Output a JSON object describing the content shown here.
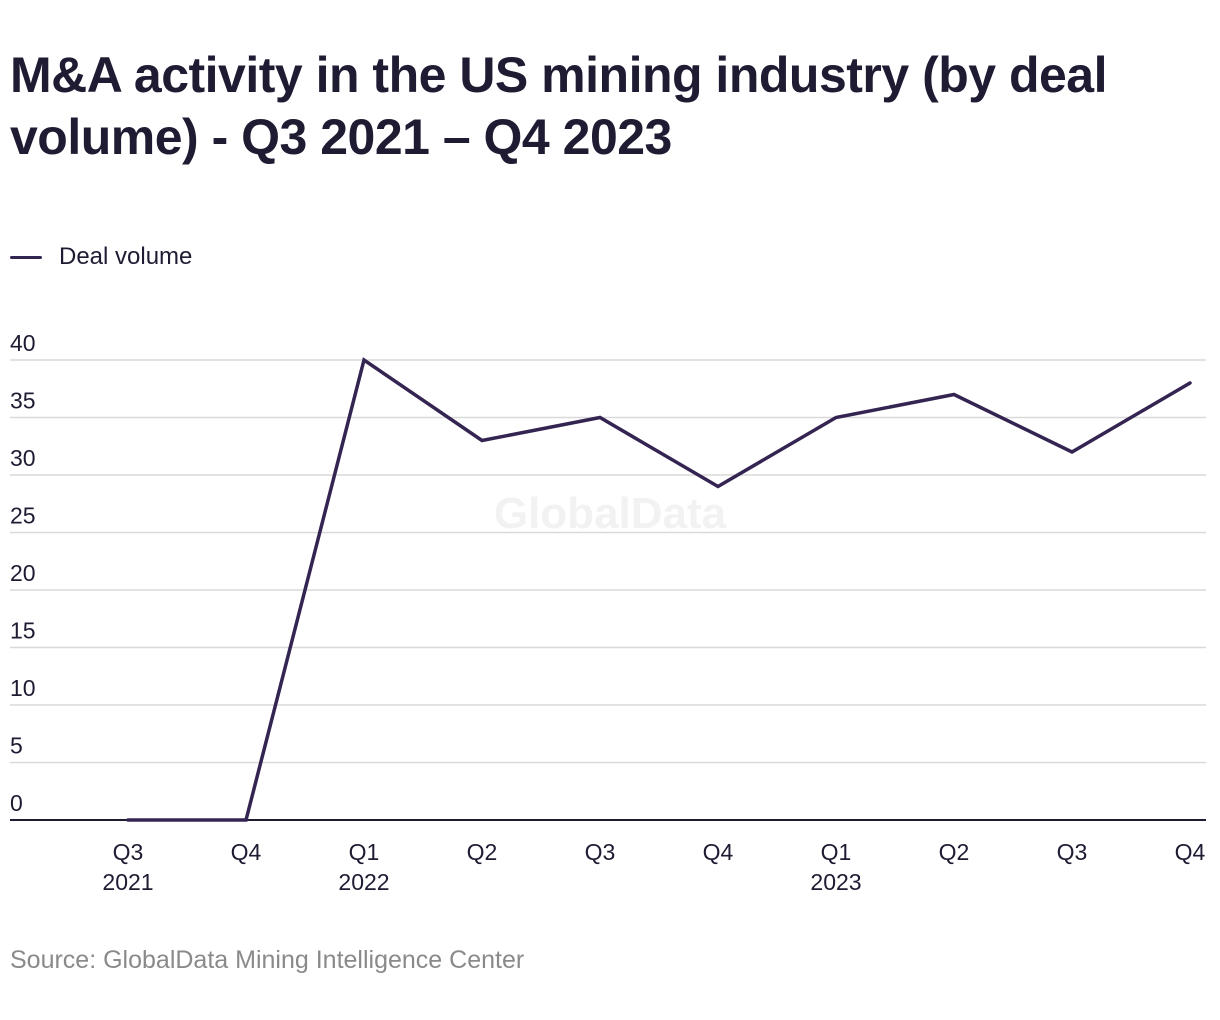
{
  "title": "M&A activity in the US mining industry (by deal volume) - Q3 2021 – Q4 2023",
  "legend": {
    "label": "Deal volume"
  },
  "watermark": "GlobalData",
  "source": "Source: GlobalData Mining Intelligence Center",
  "colors": {
    "line": "#342452",
    "grid": "#d9d9d9",
    "axis": "#1f1b33",
    "text": "#1f1b33",
    "watermark": "#f2f2f2"
  },
  "chart_data": {
    "type": "line",
    "categories": [
      "Q3",
      "Q4",
      "Q1",
      "Q2",
      "Q3",
      "Q4",
      "Q1",
      "Q2",
      "Q3",
      "Q4"
    ],
    "year_labels": [
      "2021",
      "",
      "2022",
      "",
      "",
      "",
      "2023",
      "",
      "",
      ""
    ],
    "series": [
      {
        "name": "Deal volume",
        "values": [
          0,
          0,
          40,
          33,
          35,
          29,
          35,
          37,
          32,
          38
        ]
      }
    ],
    "yticks": [
      0,
      5,
      10,
      15,
      20,
      25,
      30,
      35,
      40
    ],
    "ylim": [
      0,
      40
    ],
    "grid": true,
    "legend_position": "top-left"
  }
}
